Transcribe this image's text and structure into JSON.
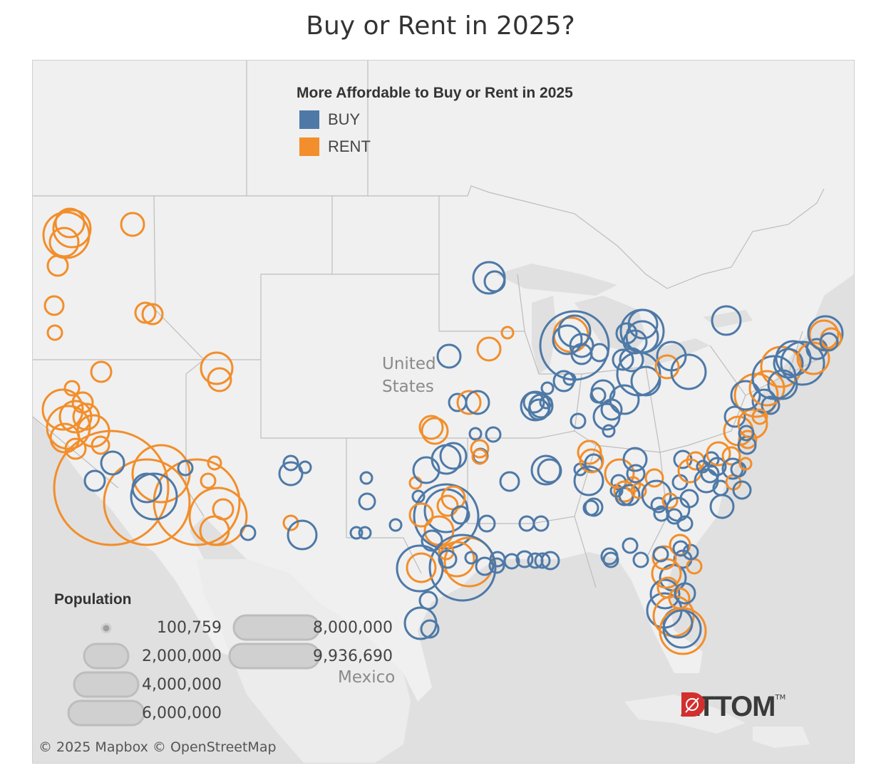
{
  "title": "Buy or Rent in 2025?",
  "legend": {
    "title": "More Affordable to Buy or Rent in 2025",
    "items": [
      {
        "label": "BUY",
        "color": "#4e79a7"
      },
      {
        "label": "RENT",
        "color": "#f28e2b"
      }
    ]
  },
  "map_labels": {
    "country_us": "United States",
    "country_mexico": "Mexico"
  },
  "population_legend": {
    "title": "Population",
    "values": [
      "100,759",
      "2,000,000",
      "4,000,000",
      "6,000,000",
      "8,000,000",
      "9,936,690"
    ]
  },
  "attribution": "© 2025 Mapbox  © OpenStreetMap",
  "logo_text": "ATTOM",
  "logo_tm": "TM"
}
